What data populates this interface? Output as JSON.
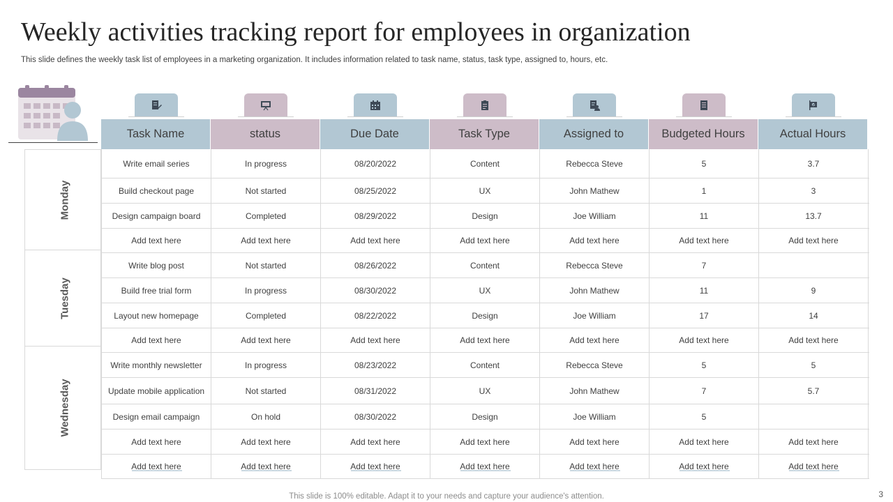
{
  "title": "Weekly activities tracking report for employees in organization",
  "subtitle": "This slide defines the weekly task list of employees in a marketing organization. It includes information related to task name, status, task type, assigned to, hours, etc.",
  "colors": {
    "blue": "#b2c7d3",
    "mauve": "#cdbcc8",
    "icon_dark": "#3f4a57"
  },
  "columns": [
    {
      "label": "Task Name",
      "icon": "document-edit-icon",
      "color": "blue"
    },
    {
      "label": "status",
      "icon": "presentation-board-icon",
      "color": "mauve"
    },
    {
      "label": "Due Date",
      "icon": "calendar-icon",
      "color": "blue"
    },
    {
      "label": "Task Type",
      "icon": "clipboard-icon",
      "color": "mauve"
    },
    {
      "label": "Assigned to",
      "icon": "team-document-icon",
      "color": "blue"
    },
    {
      "label": "Budgeted Hours",
      "icon": "list-document-icon",
      "color": "mauve"
    },
    {
      "label": "Actual Hours",
      "icon": "signboard-icon",
      "color": "blue"
    }
  ],
  "days": [
    {
      "label": "Monday",
      "rows": [
        [
          "Write email series",
          "In progress",
          "08/20/2022",
          "Content",
          "Rebecca Steve",
          "5",
          "3.7"
        ],
        [
          "Build checkout page",
          "Not started",
          "08/25/2022",
          "UX",
          "John Mathew",
          "1",
          "3"
        ],
        [
          "Design campaign board",
          "Completed",
          "08/29/2022",
          "Design",
          "Joe William",
          "11",
          "13.7"
        ],
        [
          "Add text here",
          "Add text here",
          "Add text here",
          "Add text here",
          "Add text here",
          "Add text here",
          "Add text here"
        ]
      ]
    },
    {
      "label": "Tuesday",
      "rows": [
        [
          "Write blog post",
          "Not started",
          "08/26/2022",
          "Content",
          "Rebecca Steve",
          "7",
          ""
        ],
        [
          "Build free trial form",
          "In progress",
          "08/30/2022",
          "UX",
          "John Mathew",
          "11",
          "9"
        ],
        [
          "Layout new homepage",
          "Completed",
          "08/22/2022",
          "Design",
          "Joe William",
          "17",
          "14"
        ],
        [
          "Add text here",
          "Add text here",
          "Add text here",
          "Add text here",
          "Add text here",
          "Add text here",
          "Add text here"
        ]
      ]
    },
    {
      "label": "Wednesday",
      "rows": [
        [
          "Write monthly newsletter",
          "In progress",
          "08/23/2022",
          "Content",
          "Rebecca Steve",
          "5",
          "5"
        ],
        [
          "Update mobile application",
          "Not started",
          "08/31/2022",
          "UX",
          "John Mathew",
          "7",
          "5.7"
        ],
        [
          "Design email campaign",
          "On hold",
          "08/30/2022",
          "Design",
          "Joe William",
          "5",
          ""
        ],
        [
          "Add text here",
          "Add text here",
          "Add text here",
          "Add text here",
          "Add text here",
          "Add text here",
          "Add text here"
        ],
        [
          "Add text here",
          "Add text here",
          "Add text here",
          "Add text here",
          "Add text here",
          "Add text here",
          "Add text here"
        ]
      ]
    }
  ],
  "footer": "This slide is 100% editable. Adapt it to your needs and capture your audience's attention.",
  "page_number": "3"
}
